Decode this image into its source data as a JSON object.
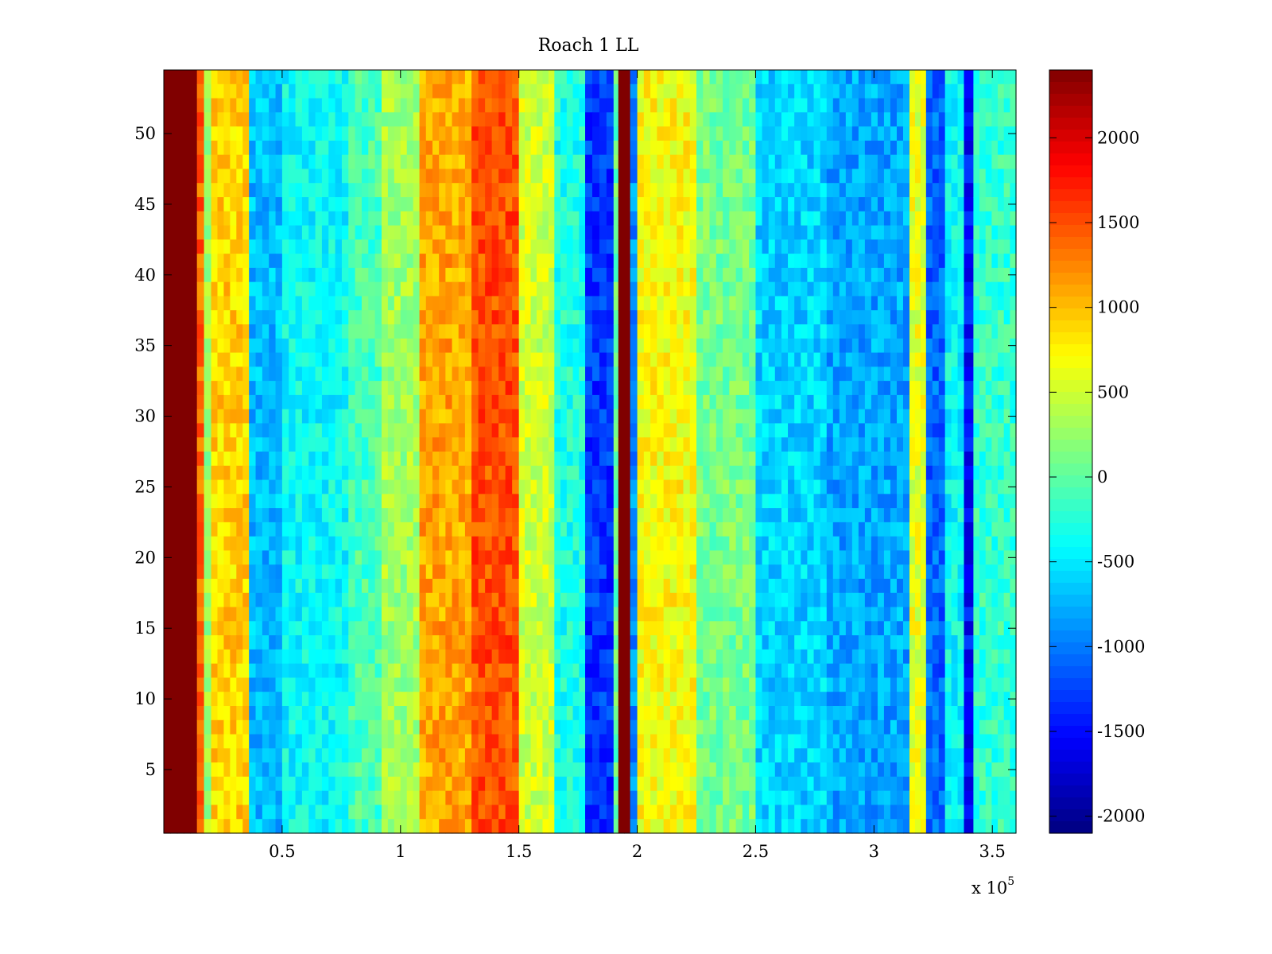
{
  "chart_data": {
    "type": "heatmap",
    "title": "Roach 1 LL",
    "xlabel": "",
    "ylabel": "",
    "x_multiplier": "x 10",
    "x_multiplier_exponent": "5",
    "xlim": [
      0,
      360000
    ],
    "ylim": [
      0.5,
      54.5
    ],
    "x_ticks": [
      {
        "value": 50000,
        "label": "0.5"
      },
      {
        "value": 100000,
        "label": "1"
      },
      {
        "value": 150000,
        "label": "1.5"
      },
      {
        "value": 200000,
        "label": "2"
      },
      {
        "value": 250000,
        "label": "2.5"
      },
      {
        "value": 300000,
        "label": "3"
      },
      {
        "value": 350000,
        "label": "3.5"
      }
    ],
    "y_ticks": [
      {
        "value": 5,
        "label": "5"
      },
      {
        "value": 10,
        "label": "10"
      },
      {
        "value": 15,
        "label": "15"
      },
      {
        "value": 20,
        "label": "20"
      },
      {
        "value": 25,
        "label": "25"
      },
      {
        "value": 30,
        "label": "30"
      },
      {
        "value": 35,
        "label": "35"
      },
      {
        "value": 40,
        "label": "40"
      },
      {
        "value": 45,
        "label": "45"
      },
      {
        "value": 50,
        "label": "50"
      }
    ],
    "colorbar": {
      "colormap": "jet",
      "clim": [
        -2100,
        2400
      ],
      "ticks": [
        {
          "value": 2000,
          "label": "2000"
        },
        {
          "value": 1500,
          "label": "1500"
        },
        {
          "value": 1000,
          "label": "1000"
        },
        {
          "value": 500,
          "label": "500"
        },
        {
          "value": 0,
          "label": "0"
        },
        {
          "value": -500,
          "label": "-500"
        },
        {
          "value": -1000,
          "label": "-1000"
        },
        {
          "value": -1500,
          "label": "-1500"
        },
        {
          "value": -2000,
          "label": "-2000"
        }
      ]
    },
    "rows": 54,
    "column_profile": [
      {
        "x_start": 0,
        "x_end": 14000,
        "value": 2400
      },
      {
        "x_start": 14000,
        "x_end": 17000,
        "value": 1400
      },
      {
        "x_start": 17000,
        "x_end": 20000,
        "value": 300
      },
      {
        "x_start": 20000,
        "x_end": 36000,
        "value": 900
      },
      {
        "x_start": 36000,
        "x_end": 50000,
        "value": -700
      },
      {
        "x_start": 50000,
        "x_end": 78000,
        "value": -400
      },
      {
        "x_start": 78000,
        "x_end": 92000,
        "value": -100
      },
      {
        "x_start": 92000,
        "x_end": 108000,
        "value": 300
      },
      {
        "x_start": 108000,
        "x_end": 130000,
        "value": 1100
      },
      {
        "x_start": 130000,
        "x_end": 150000,
        "value": 1500
      },
      {
        "x_start": 150000,
        "x_end": 165000,
        "value": 500
      },
      {
        "x_start": 165000,
        "x_end": 178000,
        "value": -300
      },
      {
        "x_start": 178000,
        "x_end": 190000,
        "value": -1300
      },
      {
        "x_start": 190000,
        "x_end": 192000,
        "value": 0
      },
      {
        "x_start": 192000,
        "x_end": 197000,
        "value": 2400
      },
      {
        "x_start": 197000,
        "x_end": 200000,
        "value": -900
      },
      {
        "x_start": 200000,
        "x_end": 225000,
        "value": 700
      },
      {
        "x_start": 225000,
        "x_end": 250000,
        "value": 100
      },
      {
        "x_start": 250000,
        "x_end": 280000,
        "value": -600
      },
      {
        "x_start": 280000,
        "x_end": 315000,
        "value": -800
      },
      {
        "x_start": 315000,
        "x_end": 322000,
        "value": 600
      },
      {
        "x_start": 322000,
        "x_end": 330000,
        "value": -1100
      },
      {
        "x_start": 330000,
        "x_end": 338000,
        "value": -400
      },
      {
        "x_start": 338000,
        "x_end": 342000,
        "value": -1500
      },
      {
        "x_start": 342000,
        "x_end": 360000,
        "value": -200
      }
    ]
  }
}
